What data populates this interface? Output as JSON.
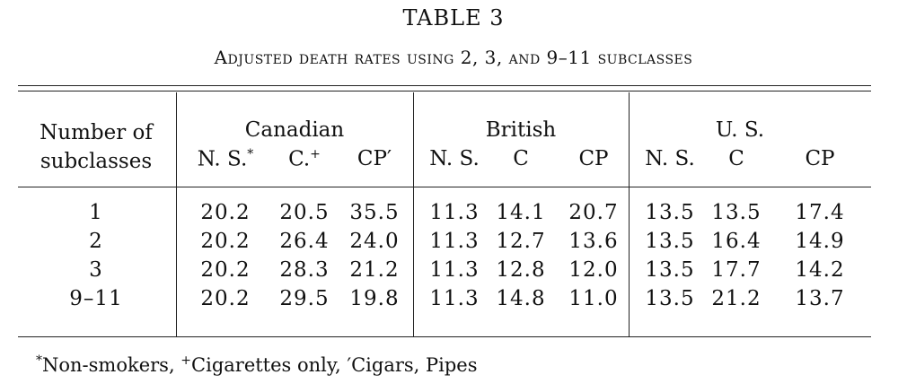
{
  "table": {
    "number": "TABLE 3",
    "caption": "Adjusted death rates using 2, 3, and 9–11 subclasses",
    "stub_header_line1": "Number of",
    "stub_header_line2": "subclasses",
    "groups": [
      {
        "name": "Canadian",
        "columns": [
          {
            "label": "N. S.",
            "mark": "*"
          },
          {
            "label": "C.",
            "mark": "+"
          },
          {
            "label": "CP",
            "mark": "′"
          }
        ]
      },
      {
        "name": "British",
        "columns": [
          {
            "label": "N. S.",
            "mark": ""
          },
          {
            "label": "C",
            "mark": ""
          },
          {
            "label": "CP",
            "mark": ""
          }
        ]
      },
      {
        "name": "U. S.",
        "columns": [
          {
            "label": "N. S.",
            "mark": ""
          },
          {
            "label": "C",
            "mark": ""
          },
          {
            "label": "CP",
            "mark": ""
          }
        ]
      }
    ],
    "rows": [
      {
        "subclasses": "1",
        "values": [
          "20.2",
          "20.5",
          "35.5",
          "11.3",
          "14.1",
          "20.7",
          "13.5",
          "13.5",
          "17.4"
        ]
      },
      {
        "subclasses": "2",
        "values": [
          "20.2",
          "26.4",
          "24.0",
          "11.3",
          "12.7",
          "13.6",
          "13.5",
          "16.4",
          "14.9"
        ]
      },
      {
        "subclasses": "3",
        "values": [
          "20.2",
          "28.3",
          "21.2",
          "11.3",
          "12.8",
          "12.0",
          "13.5",
          "17.7",
          "14.2"
        ]
      },
      {
        "subclasses": "9–11",
        "values": [
          "20.2",
          "29.5",
          "19.8",
          "11.3",
          "14.8",
          "11.0",
          "13.5",
          "21.2",
          "13.7"
        ]
      }
    ],
    "footnote": {
      "mark1": "*",
      "text1": "Non-smokers, ",
      "mark2": "+",
      "text2": "Cigarettes only, ",
      "mark3": "′",
      "text3": "Cigars, Pipes"
    }
  }
}
